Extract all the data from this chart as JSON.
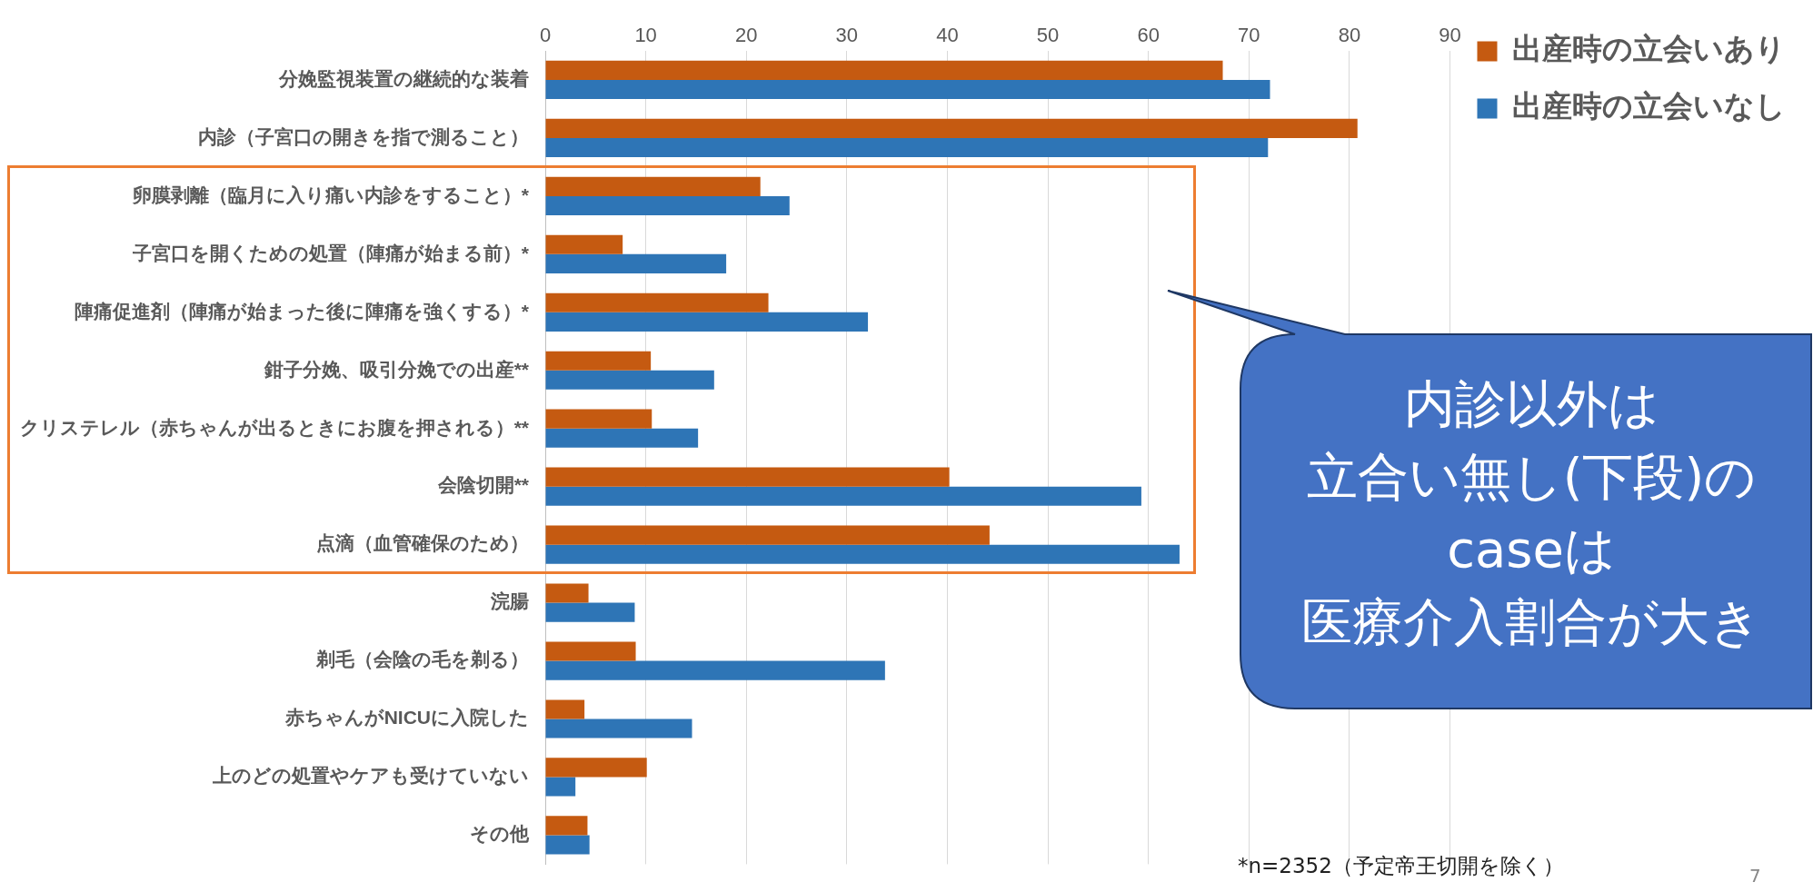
{
  "chart_data": {
    "type": "bar",
    "orientation": "horizontal",
    "categories": [
      "分娩監視装置の継続的な装着",
      "内診（子宮口の開きを指で測ること）",
      "卵膜剥離（臨月に入り痛い内診をすること）*",
      "子宮口を開くための処置（陣痛が始まる前）*",
      "陣痛促進剤（陣痛が始まった後に陣痛を強くする）*",
      "鉗子分娩、吸引分娩での出産**",
      "クリステレル（赤ちゃんが出るときにお腹を押される）**",
      "会陰切開**",
      "点滴（血管確保のため）",
      "浣腸",
      "剃毛（会陰の毛を剃る）",
      "赤ちゃんがNICUに入院した",
      "上のどの処置やケアも受けていない",
      "その他"
    ],
    "series": [
      {
        "name": "出産時の立会いあり",
        "color": "#c55a11",
        "values": [
          67.4,
          80.8,
          21.4,
          7.7,
          22.2,
          10.5,
          10.6,
          40.2,
          44.2,
          4.3,
          9.0,
          3.9,
          10.1,
          4.2
        ]
      },
      {
        "name": "出産時の立会いなし",
        "color": "#2e75b6",
        "values": [
          72.1,
          71.9,
          24.3,
          18.0,
          32.1,
          16.8,
          15.2,
          59.3,
          63.1,
          8.9,
          33.8,
          14.6,
          3.0,
          4.4
        ]
      }
    ],
    "xlim": [
      0,
      90
    ],
    "xticks": [
      0,
      10,
      20,
      30,
      40,
      50,
      60,
      70,
      80,
      90
    ],
    "grid": "x",
    "legend": "top right",
    "annotations": [
      "内診以外は",
      "立合い無し(下段)の",
      "caseは",
      "医療介入割合が大き",
      "*n=2352（予定帝王切開を除く）",
      "7"
    ]
  }
}
